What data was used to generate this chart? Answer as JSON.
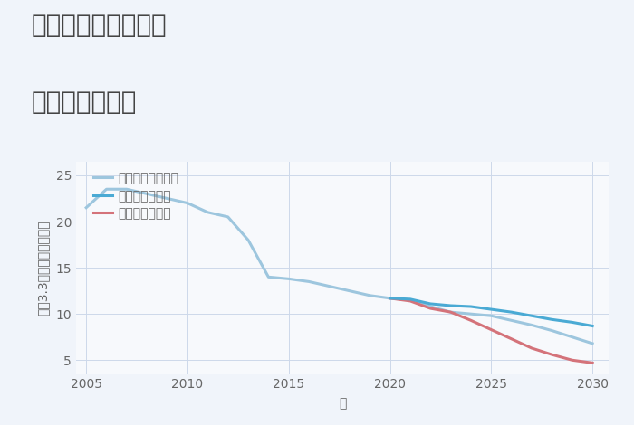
{
  "title_line1": "三重県伊賀市千歳の",
  "title_line2": "土地の価格推移",
  "xlabel": "年",
  "ylabel_parts": [
    "平（3.3㎡）単価（万円）"
  ],
  "xlim": [
    2004.5,
    2030.8
  ],
  "ylim": [
    3.5,
    26.5
  ],
  "yticks": [
    5,
    10,
    15,
    20,
    25
  ],
  "xticks": [
    2005,
    2010,
    2015,
    2020,
    2025,
    2030
  ],
  "bg_color": "#f7f9fc",
  "fig_bg_color": "#f0f4fa",
  "grid_color": "#cdd8ea",
  "normal_scenario": {
    "label": "ノーマルシナリオ",
    "color": "#9dc6de",
    "linewidth": 2.2,
    "x": [
      2005,
      2006,
      2007,
      2008,
      2009,
      2010,
      2011,
      2012,
      2013,
      2014,
      2015,
      2016,
      2017,
      2018,
      2019,
      2020,
      2021,
      2022,
      2023,
      2024,
      2025,
      2026,
      2027,
      2028,
      2029,
      2030
    ],
    "y": [
      21.5,
      23.5,
      23.5,
      23.0,
      22.5,
      22.0,
      21.0,
      20.5,
      18.0,
      14.0,
      13.8,
      13.5,
      13.0,
      12.5,
      12.0,
      11.7,
      11.5,
      10.8,
      10.2,
      10.0,
      9.8,
      9.3,
      8.8,
      8.2,
      7.5,
      6.8
    ]
  },
  "good_scenario": {
    "label": "グッドシナリオ",
    "color": "#4aaad4",
    "linewidth": 2.2,
    "x": [
      2020,
      2021,
      2022,
      2023,
      2024,
      2025,
      2026,
      2027,
      2028,
      2029,
      2030
    ],
    "y": [
      11.7,
      11.6,
      11.1,
      10.9,
      10.8,
      10.5,
      10.2,
      9.8,
      9.4,
      9.1,
      8.7
    ]
  },
  "bad_scenario": {
    "label": "バッドシナリオ",
    "color": "#d4737a",
    "linewidth": 2.2,
    "x": [
      2020,
      2021,
      2022,
      2023,
      2024,
      2025,
      2026,
      2027,
      2028,
      2029,
      2030
    ],
    "y": [
      11.7,
      11.4,
      10.6,
      10.2,
      9.3,
      8.3,
      7.3,
      6.3,
      5.6,
      5.0,
      4.7
    ]
  },
  "legend_fontsize": 10,
  "title_fontsize": 20,
  "axis_fontsize": 10,
  "tick_fontsize": 10,
  "title_color": "#444444",
  "label_color": "#666666"
}
